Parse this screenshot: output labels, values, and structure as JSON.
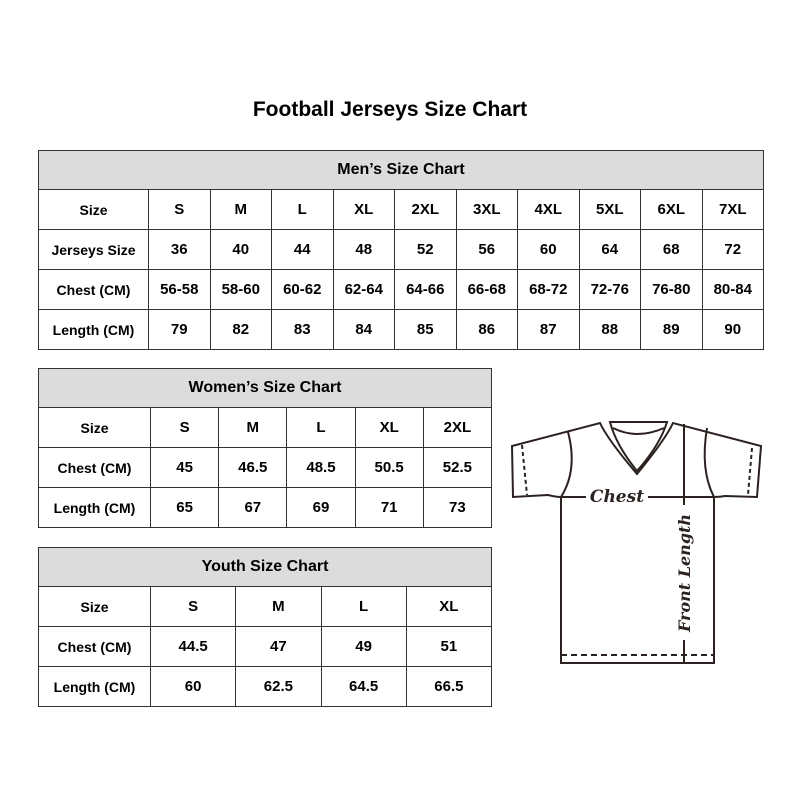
{
  "title": "Football Jerseys Size Chart",
  "men": {
    "heading": "Men’s Size Chart",
    "rows": [
      [
        "Size",
        "S",
        "M",
        "L",
        "XL",
        "2XL",
        "3XL",
        "4XL",
        "5XL",
        "6XL",
        "7XL"
      ],
      [
        "Jerseys Size",
        "36",
        "40",
        "44",
        "48",
        "52",
        "56",
        "60",
        "64",
        "68",
        "72"
      ],
      [
        "Chest (CM)",
        "56-58",
        "58-60",
        "60-62",
        "62-64",
        "64-66",
        "66-68",
        "68-72",
        "72-76",
        "76-80",
        "80-84"
      ],
      [
        "Length (CM)",
        "79",
        "82",
        "83",
        "84",
        "85",
        "86",
        "87",
        "88",
        "89",
        "90"
      ]
    ]
  },
  "women": {
    "heading": "Women’s Size Chart",
    "rows": [
      [
        "Size",
        "S",
        "M",
        "L",
        "XL",
        "2XL"
      ],
      [
        "Chest (CM)",
        "45",
        "46.5",
        "48.5",
        "50.5",
        "52.5"
      ],
      [
        "Length (CM)",
        "65",
        "67",
        "69",
        "71",
        "73"
      ]
    ]
  },
  "youth": {
    "heading": "Youth Size Chart",
    "rows": [
      [
        "Size",
        "S",
        "M",
        "L",
        "XL"
      ],
      [
        "Chest (CM)",
        "44.5",
        "47",
        "49",
        "51"
      ],
      [
        "Length (CM)",
        "60",
        "62.5",
        "64.5",
        "66.5"
      ]
    ]
  },
  "diagram": {
    "chest_label": "Chest",
    "length_label": "Front Length"
  },
  "colors": {
    "header_bg": "#dcdcdc",
    "border": "#333333",
    "outline": "#2b2220"
  }
}
